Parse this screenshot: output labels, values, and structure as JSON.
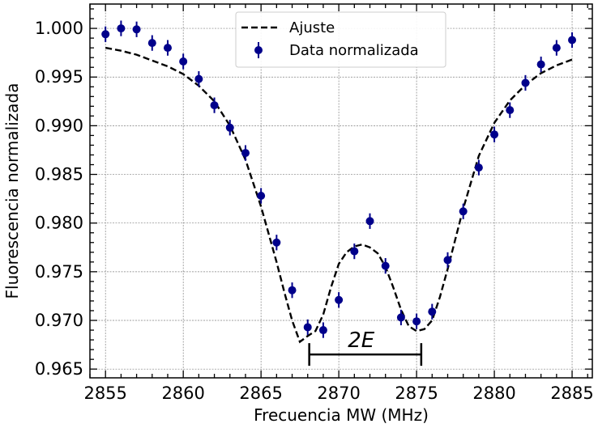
{
  "chart_data": {
    "type": "scatter",
    "xlabel": "Frecuencia MW (MHz)",
    "ylabel": "Fluorescencia normalizada",
    "xlim": [
      2854,
      2886.3
    ],
    "ylim": [
      0.9641,
      1.0025
    ],
    "xticks": [
      2855,
      2860,
      2865,
      2870,
      2875,
      2880,
      2885
    ],
    "yticks": [
      0.965,
      0.97,
      0.975,
      0.98,
      0.985,
      0.99,
      0.995,
      1.0
    ],
    "xtick_labels": [
      "2855",
      "2860",
      "2865",
      "2870",
      "2875",
      "2880",
      "2885"
    ],
    "ytick_labels": [
      "0.965",
      "0.970",
      "0.975",
      "0.980",
      "0.985",
      "0.990",
      "0.995",
      "1.000"
    ],
    "grid": true,
    "legend_position": "top-center",
    "series": [
      {
        "name": "Data normalizada",
        "kind": "errorbar",
        "color": "#00008b",
        "x": [
          2855,
          2856,
          2857,
          2858,
          2859,
          2860,
          2861,
          2862,
          2863,
          2864,
          2865,
          2866,
          2867,
          2868,
          2869,
          2870,
          2871,
          2872,
          2873,
          2874,
          2875,
          2876,
          2877,
          2878,
          2879,
          2880,
          2881,
          2882,
          2883,
          2884,
          2885
        ],
        "y": [
          0.9994,
          1.0,
          0.9999,
          0.9985,
          0.998,
          0.9966,
          0.9948,
          0.9921,
          0.9898,
          0.9872,
          0.9828,
          0.978,
          0.9731,
          0.9693,
          0.969,
          0.9721,
          0.9771,
          0.9802,
          0.9756,
          0.9703,
          0.9699,
          0.9709,
          0.9762,
          0.9812,
          0.9857,
          0.9891,
          0.9916,
          0.9944,
          0.9963,
          0.998,
          0.9988
        ],
        "yerr": 0.0008
      },
      {
        "name": "Ajuste",
        "kind": "line",
        "style": "dashed",
        "color": "#000000",
        "x": [
          2855,
          2856,
          2857,
          2858,
          2859,
          2860,
          2861,
          2862,
          2863,
          2864,
          2865,
          2866,
          2866.5,
          2867,
          2867.5,
          2868,
          2868.5,
          2869,
          2869.5,
          2870,
          2870.5,
          2871,
          2871.5,
          2872,
          2872.5,
          2873,
          2873.5,
          2874,
          2874.5,
          2875,
          2875.5,
          2876,
          2876.5,
          2877,
          2878,
          2879,
          2880,
          2881,
          2882,
          2883,
          2884,
          2885
        ],
        "y": [
          0.998,
          0.9977,
          0.9973,
          0.9967,
          0.9961,
          0.9953,
          0.9941,
          0.9925,
          0.99,
          0.9865,
          0.9817,
          0.976,
          0.9729,
          0.97,
          0.9678,
          0.9684,
          0.9689,
          0.9706,
          0.9734,
          0.9758,
          0.977,
          0.9776,
          0.9778,
          0.9775,
          0.9769,
          0.9755,
          0.9734,
          0.9711,
          0.9694,
          0.9689,
          0.9691,
          0.97,
          0.9724,
          0.9753,
          0.9815,
          0.9869,
          0.9903,
          0.9926,
          0.9942,
          0.9954,
          0.9962,
          0.9968
        ]
      }
    ],
    "annotations": [
      {
        "text": "2E",
        "x_start": 2868.1,
        "x_end": 2875.3,
        "y": 0.9665
      }
    ]
  }
}
